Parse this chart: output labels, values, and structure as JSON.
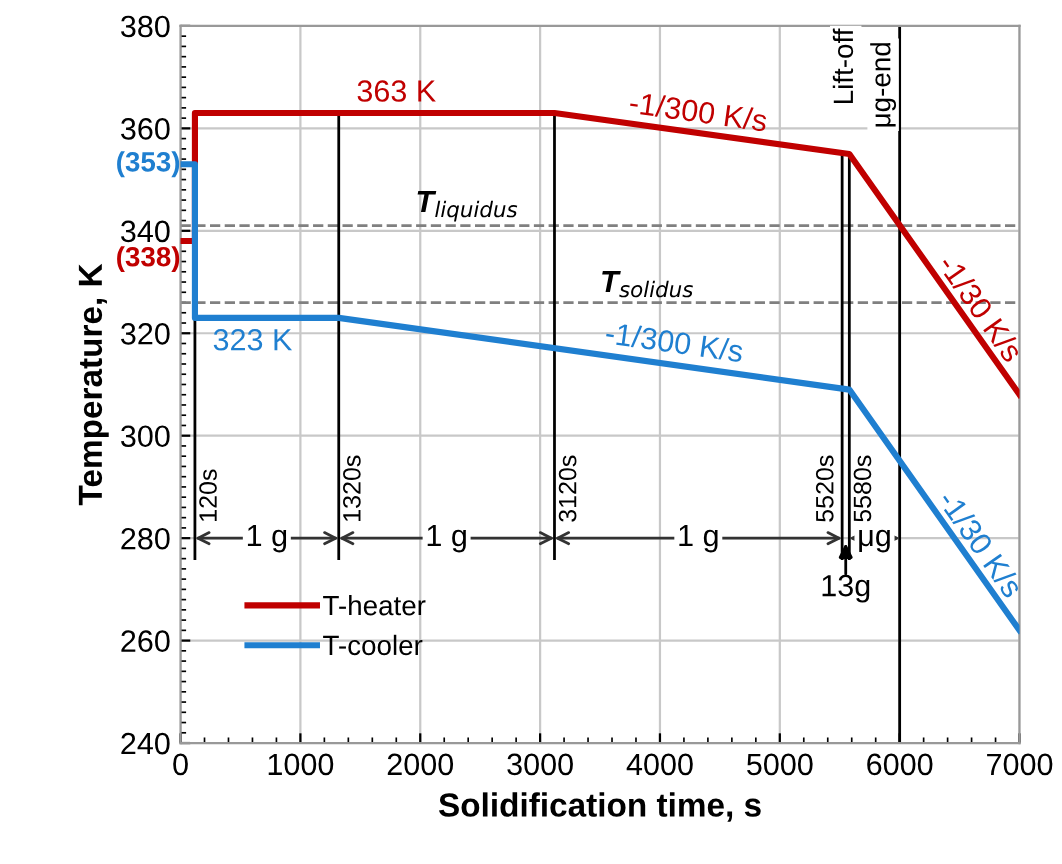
{
  "chart_data": {
    "type": "line",
    "xlabel": "Solidification time, s",
    "ylabel": "Temperature, K",
    "series": [
      {
        "name": "T-heater",
        "color": "#c00000",
        "x": [
          0,
          120,
          120,
          3120,
          5580,
          7000
        ],
        "values": [
          338,
          338,
          363,
          363,
          355,
          308
        ]
      },
      {
        "name": "T-cooler",
        "color": "#1f7fd0",
        "x": [
          0,
          120,
          120,
          1320,
          5580,
          7000
        ],
        "values": [
          353,
          353,
          323,
          323,
          309,
          262
        ]
      }
    ],
    "xlim": [
      0,
      7000
    ],
    "xticks": [
      0,
      1000,
      2000,
      3000,
      4000,
      5000,
      6000,
      7000
    ],
    "ylim": [
      240,
      380
    ],
    "yticks": [
      240,
      260,
      280,
      300,
      320,
      340,
      360,
      380
    ],
    "grid": true,
    "legend": "bottom left",
    "marker": "none",
    "line_style": "solid",
    "ref_lines": [
      {
        "axis": "y",
        "value": 341,
        "label": "T$_{liquidus}$",
        "color": "#808080",
        "line_style": "dashed"
      },
      {
        "axis": "y",
        "value": 326,
        "label": "T$_{solidus}$",
        "color": "#808080",
        "line_style": "dashed"
      },
      {
        "axis": "x",
        "value": 120,
        "label": "120s",
        "color": "#000000",
        "line_style": "solid"
      },
      {
        "axis": "x",
        "value": 1320,
        "label": "1320s",
        "color": "#000000",
        "line_style": "solid"
      },
      {
        "axis": "x",
        "value": 3120,
        "label": "3120s",
        "color": "#000000",
        "line_style": "solid"
      },
      {
        "axis": "x",
        "value": 5520,
        "label": "5520s",
        "color": "#000000",
        "line_style": "solid"
      },
      {
        "axis": "x",
        "value": 5580,
        "label": "5580s",
        "color": "#000000",
        "line_style": "solid"
      },
      {
        "axis": "x",
        "value": 6000,
        "label": "μg-end",
        "color": "#000000",
        "line_style": "solid"
      }
    ],
    "annotations": [
      {
        "text": "363 K",
        "x": 1800,
        "y": 364
      },
      {
        "text": "323 K",
        "x": 600,
        "y": 321
      },
      {
        "text": "-1/300 K/s",
        "x": 4300,
        "y": 360
      },
      {
        "text": "-1/300 K/s",
        "x": 4100,
        "y": 315
      },
      {
        "text": "-1/30 K/s",
        "x": 6560,
        "y": 323
      },
      {
        "text": "-1/30 K/s",
        "x": 6560,
        "y": 277
      },
      {
        "text": "(353)",
        "x": 0,
        "y": 353
      },
      {
        "text": "(338)",
        "x": 0,
        "y": 338
      },
      {
        "text": "1 g",
        "x": 720,
        "y": 280
      },
      {
        "text": "1 g",
        "x": 2220,
        "y": 280
      },
      {
        "text": "1 g",
        "x": 4320,
        "y": 280
      },
      {
        "text": "μg",
        "x": 5790,
        "y": 280
      },
      {
        "text": "13g",
        "x": 5550,
        "y": 280
      },
      {
        "text": "Lift-off",
        "x": 5550,
        "y": 372
      }
    ]
  }
}
